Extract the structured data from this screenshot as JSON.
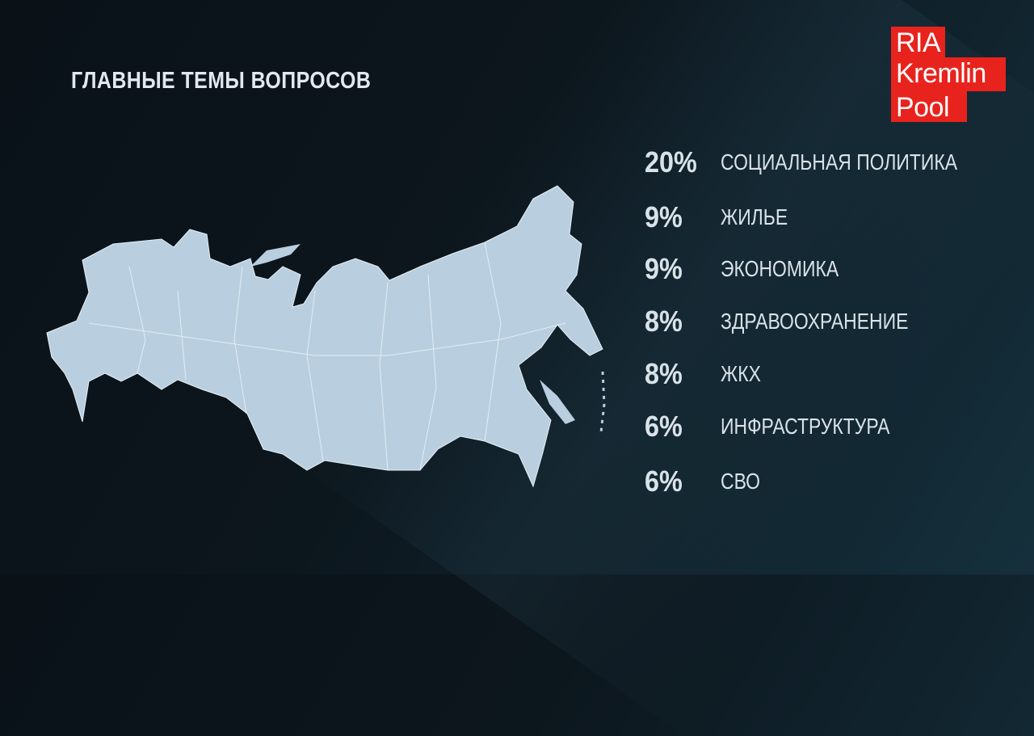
{
  "title": "ГЛАВНЫЕ ТЕМЫ ВОПРОСОВ",
  "logo": {
    "lines": [
      "RIA",
      "Kremlin",
      "Pool"
    ],
    "color": "#e8231d"
  },
  "map": {
    "subject": "Russia regions map",
    "fill": "#b9cfe0"
  },
  "chart_data": {
    "type": "table",
    "title": "ГЛАВНЫЕ ТЕМЫ ВОПРОСОВ",
    "rows": [
      {
        "value": "20%",
        "label": "СОЦИАЛЬНАЯ ПОЛИТИКА"
      },
      {
        "value": "9%",
        "label": "ЖИЛЬЕ"
      },
      {
        "value": "9%",
        "label": "ЭКОНОМИКА"
      },
      {
        "value": "8%",
        "label": "ЗДРАВООХРАНЕНИЕ"
      },
      {
        "value": "8%",
        "label": "ЖКХ"
      },
      {
        "value": "6%",
        "label": "ИНФРАСТРУКТУРА"
      },
      {
        "value": "6%",
        "label": "СВО"
      }
    ]
  }
}
